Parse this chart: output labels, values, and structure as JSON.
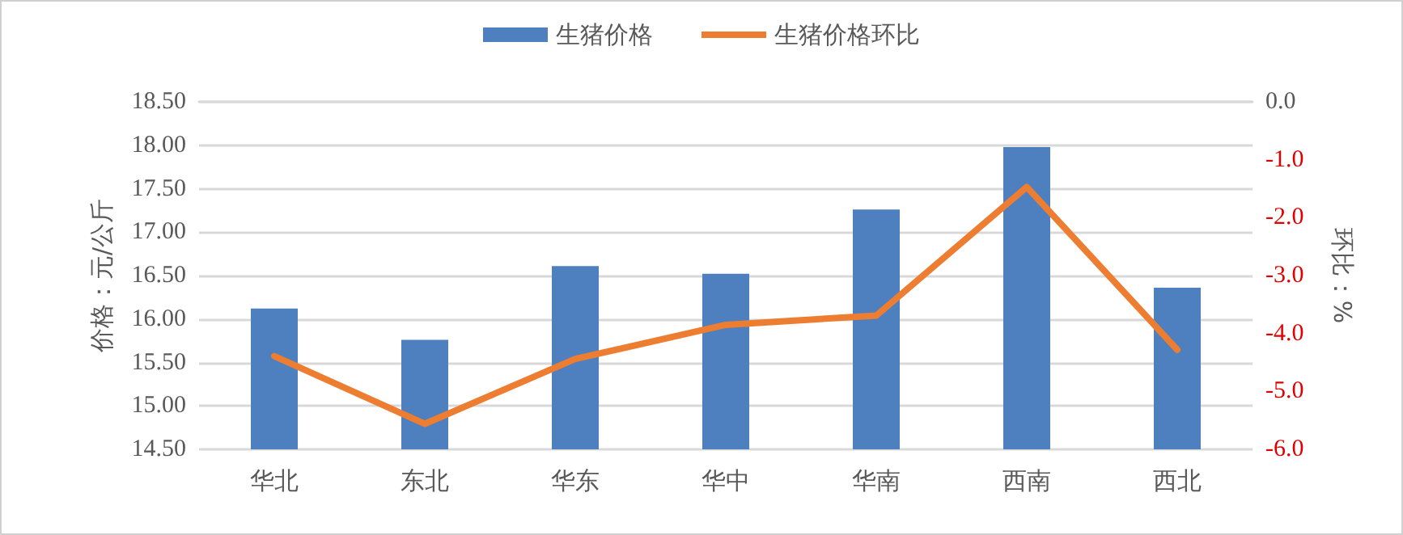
{
  "chart_data": {
    "type": "bar",
    "categories": [
      "华北",
      "东北",
      "华东",
      "华中",
      "华南",
      "西南",
      "西北"
    ],
    "series": [
      {
        "name": "生猪价格",
        "color": "#4e7fbe",
        "values": [
          16.12,
          15.76,
          16.61,
          16.52,
          17.26,
          17.98,
          16.36
        ]
      },
      {
        "name": "生猪价格环比",
        "type": "line",
        "axis": "y2",
        "color": "#ed7d31",
        "values": [
          -4.39,
          -5.56,
          -4.44,
          -3.85,
          -3.69,
          -1.47,
          -4.28
        ]
      }
    ],
    "ylabel": "价格：元/公斤",
    "y2label": "环比：%",
    "ylim": [
      14.5,
      18.5
    ],
    "yticks": [
      {
        "value": 14.5,
        "label": "14.50"
      },
      {
        "value": 15,
        "label": "15.00"
      },
      {
        "value": 15.5,
        "label": "15.50"
      },
      {
        "value": 16,
        "label": "16.00"
      },
      {
        "value": 16.5,
        "label": "16.50"
      },
      {
        "value": 17,
        "label": "17.00"
      },
      {
        "value": 17.5,
        "label": "17.50"
      },
      {
        "value": 18,
        "label": "18.00"
      },
      {
        "value": 18.5,
        "label": "18.50"
      }
    ],
    "y2lim": [
      -6,
      0
    ],
    "y2ticks": [
      {
        "value": -6,
        "label": "-6.0"
      },
      {
        "value": -5,
        "label": "-5.0"
      },
      {
        "value": -4,
        "label": "-4.0"
      },
      {
        "value": -3,
        "label": "-3.0"
      },
      {
        "value": -2,
        "label": "-2.0"
      },
      {
        "value": -1,
        "label": "-1.0"
      },
      {
        "value": 0,
        "label": "0.0"
      }
    ],
    "grid": "y",
    "legend": "top",
    "marker": "none",
    "line_style": "solid"
  }
}
